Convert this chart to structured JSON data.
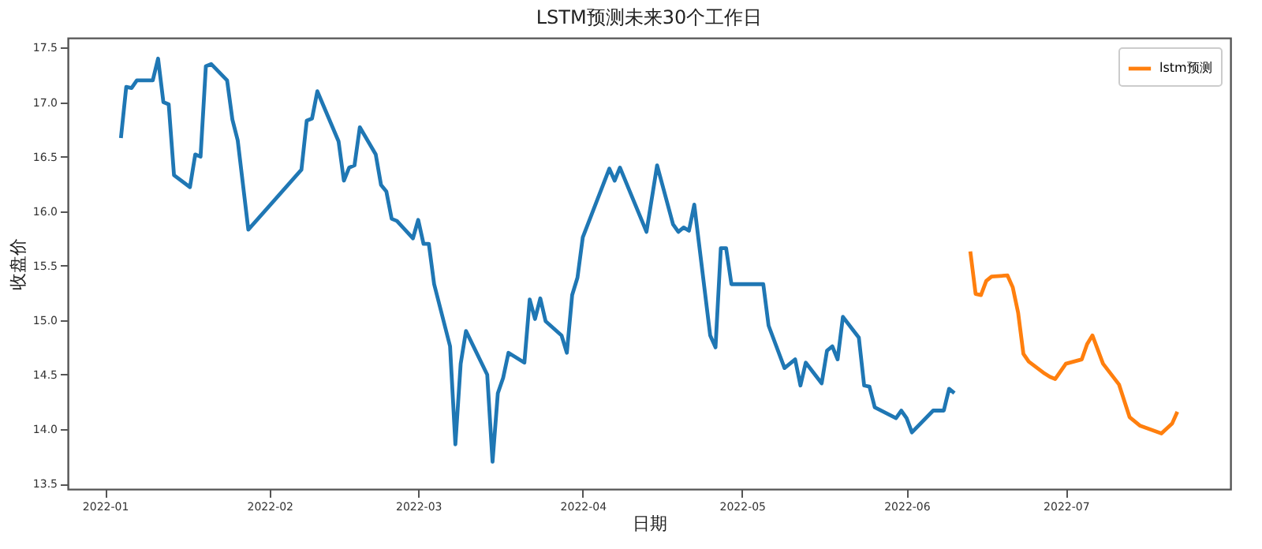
{
  "chart_data": {
    "type": "line",
    "title": "LSTM预测未来30个工作日",
    "xlabel": "日期",
    "ylabel": "收盘价",
    "xlim": [
      "2021-12-25",
      "2022-08-01"
    ],
    "xticks": [
      {
        "value": "2022-01-01",
        "label": "2022-01"
      },
      {
        "value": "2022-02-01",
        "label": "2022-02"
      },
      {
        "value": "2022-03-01",
        "label": "2022-03"
      },
      {
        "value": "2022-04-01",
        "label": "2022-04"
      },
      {
        "value": "2022-05-01",
        "label": "2022-05"
      },
      {
        "value": "2022-06-01",
        "label": "2022-06"
      },
      {
        "value": "2022-07-01",
        "label": "2022-07"
      }
    ],
    "ylim": [
      13.45,
      17.59
    ],
    "yticks": [
      13.5,
      {
        "value": 14,
        "label": "14.0"
      },
      14.5,
      {
        "value": 15,
        "label": "15.0"
      },
      15.5,
      {
        "value": 16,
        "label": "16.0"
      },
      16.5,
      {
        "value": 17,
        "label": "17.0"
      },
      17.5
    ],
    "grid": false,
    "legend": "top right",
    "series": [
      {
        "color": "#1f77b4",
        "x": [
          "2022-01-04",
          "2022-01-05",
          "2022-01-06",
          "2022-01-07",
          "2022-01-10",
          "2022-01-11",
          "2022-01-12",
          "2022-01-13",
          "2022-01-14",
          "2022-01-17",
          "2022-01-18",
          "2022-01-19",
          "2022-01-20",
          "2022-01-21",
          "2022-01-24",
          "2022-01-25",
          "2022-01-26",
          "2022-01-28",
          "2022-02-07",
          "2022-02-08",
          "2022-02-09",
          "2022-02-10",
          "2022-02-14",
          "2022-02-15",
          "2022-02-16",
          "2022-02-17",
          "2022-02-18",
          "2022-02-21",
          "2022-02-22",
          "2022-02-23",
          "2022-02-24",
          "2022-02-25",
          "2022-02-28",
          "2022-03-01",
          "2022-03-02",
          "2022-03-03",
          "2022-03-04",
          "2022-03-07",
          "2022-03-08",
          "2022-03-09",
          "2022-03-10",
          "2022-03-14",
          "2022-03-15",
          "2022-03-16",
          "2022-03-17",
          "2022-03-18",
          "2022-03-21",
          "2022-03-22",
          "2022-03-23",
          "2022-03-24",
          "2022-03-25",
          "2022-03-28",
          "2022-03-29",
          "2022-03-30",
          "2022-03-31",
          "2022-04-01",
          "2022-04-06",
          "2022-04-07",
          "2022-04-08",
          "2022-04-13",
          "2022-04-15",
          "2022-04-18",
          "2022-04-19",
          "2022-04-20",
          "2022-04-21",
          "2022-04-22",
          "2022-04-25",
          "2022-04-26",
          "2022-04-27",
          "2022-04-28",
          "2022-04-29",
          "2022-05-05",
          "2022-05-06",
          "2022-05-09",
          "2022-05-11",
          "2022-05-12",
          "2022-05-13",
          "2022-05-16",
          "2022-05-17",
          "2022-05-18",
          "2022-05-19",
          "2022-05-20",
          "2022-05-23",
          "2022-05-24",
          "2022-05-25",
          "2022-05-26",
          "2022-05-30",
          "2022-05-31",
          "2022-06-01",
          "2022-06-02",
          "2022-06-06",
          "2022-06-08",
          "2022-06-09",
          "2022-06-10"
        ],
        "values": [
          16.67,
          17.14,
          17.13,
          17.2,
          17.2,
          17.4,
          17.0,
          16.98,
          16.33,
          16.22,
          16.52,
          16.5,
          17.33,
          17.35,
          17.2,
          16.84,
          16.65,
          15.83,
          16.38,
          16.83,
          16.85,
          17.1,
          16.64,
          16.28,
          16.4,
          16.42,
          16.77,
          16.52,
          16.24,
          16.18,
          15.93,
          15.91,
          15.75,
          15.92,
          15.7,
          15.7,
          15.33,
          14.76,
          13.86,
          14.6,
          14.9,
          14.5,
          13.7,
          14.33,
          14.47,
          14.7,
          14.61,
          15.19,
          15.01,
          15.2,
          14.99,
          14.86,
          14.7,
          15.23,
          15.39,
          15.76,
          16.39,
          16.28,
          16.4,
          15.81,
          16.42,
          15.88,
          15.81,
          15.85,
          15.82,
          16.06,
          14.86,
          14.75,
          15.66,
          15.66,
          15.33,
          15.33,
          14.95,
          14.56,
          14.64,
          14.4,
          14.61,
          14.42,
          14.72,
          14.76,
          14.64,
          15.03,
          14.84,
          14.4,
          14.39,
          14.2,
          14.1,
          14.17,
          14.1,
          13.97,
          14.17,
          14.17,
          14.37,
          14.33
        ]
      },
      {
        "name": "lstm预测",
        "color": "#ff7f0e",
        "x": [
          "2022-06-13",
          "2022-06-14",
          "2022-06-15",
          "2022-06-16",
          "2022-06-17",
          "2022-06-20",
          "2022-06-21",
          "2022-06-22",
          "2022-06-23",
          "2022-06-24",
          "2022-06-27",
          "2022-06-28",
          "2022-06-29",
          "2022-07-01",
          "2022-07-04",
          "2022-07-05",
          "2022-07-06",
          "2022-07-08",
          "2022-07-11",
          "2022-07-13",
          "2022-07-15",
          "2022-07-19",
          "2022-07-21",
          "2022-07-22"
        ],
        "values": [
          15.63,
          15.24,
          15.23,
          15.36,
          15.4,
          15.41,
          15.3,
          15.07,
          14.69,
          14.62,
          14.51,
          14.48,
          14.46,
          14.6,
          14.64,
          14.78,
          14.86,
          14.6,
          14.41,
          14.11,
          14.03,
          13.96,
          14.05,
          14.16
        ]
      }
    ]
  }
}
